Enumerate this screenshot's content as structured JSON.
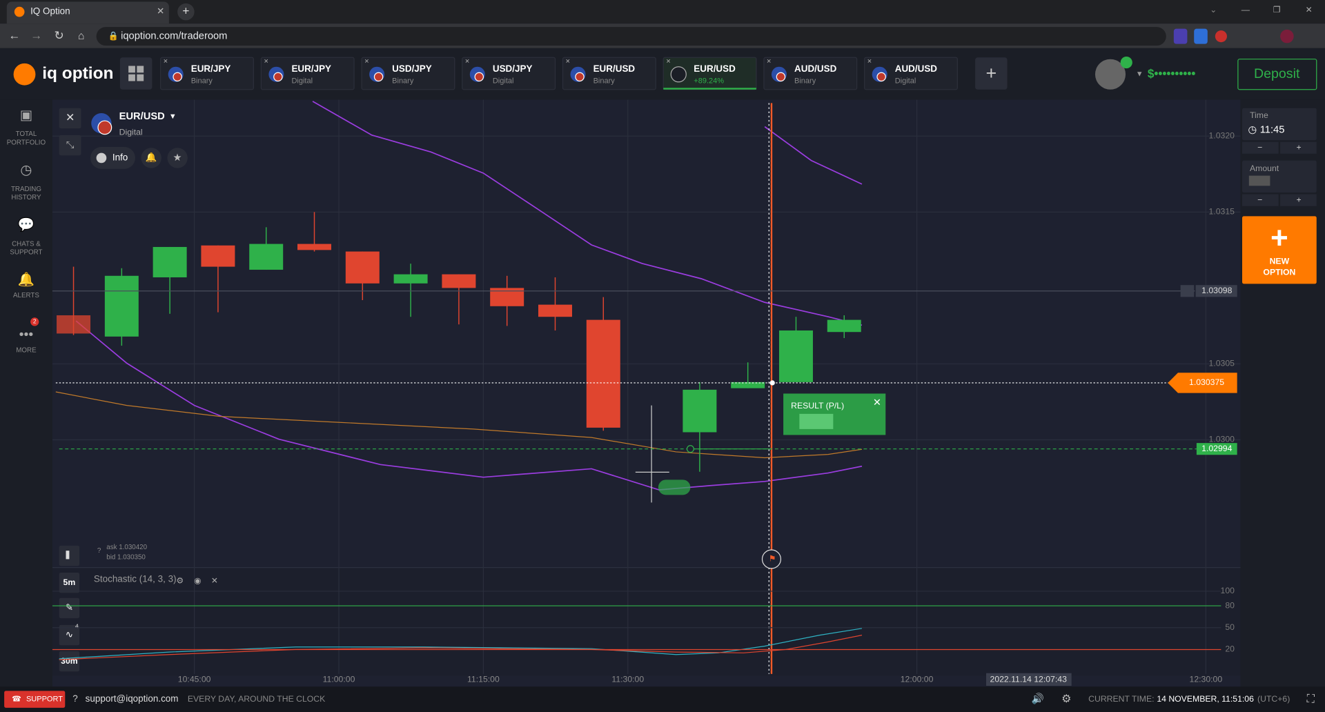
{
  "browser": {
    "tab_title": "IQ Option",
    "url": "iqoption.com/traderoom"
  },
  "header": {
    "logo": "iq option",
    "tabs": [
      {
        "pair": "EUR/JPY",
        "kind": "Binary"
      },
      {
        "pair": "EUR/JPY",
        "kind": "Digital"
      },
      {
        "pair": "USD/JPY",
        "kind": "Binary"
      },
      {
        "pair": "USD/JPY",
        "kind": "Digital"
      },
      {
        "pair": "EUR/USD",
        "kind": "Binary"
      },
      {
        "pair": "EUR/USD",
        "kind": "+89.24%"
      },
      {
        "pair": "AUD/USD",
        "kind": "Binary"
      },
      {
        "pair": "AUD/USD",
        "kind": "Digital"
      }
    ],
    "balance": "$••••••••••",
    "deposit": "Deposit"
  },
  "sidebar": {
    "items": [
      [
        "TOTAL",
        "PORTFOLIO"
      ],
      [
        "TRADING",
        "HISTORY"
      ],
      [
        "CHATS &",
        "SUPPORT"
      ],
      [
        "ALERTS"
      ],
      [
        "MORE"
      ]
    ],
    "more_badge": "2"
  },
  "asset": {
    "name": "EUR/USD",
    "type": "Digital",
    "info": "Info"
  },
  "quote": {
    "ask": "ask 1.030420",
    "bid": "bid 1.030350"
  },
  "chart": {
    "type": "candlestick",
    "ylim": [
      1.02932,
      1.03224
    ],
    "yticks": [
      {
        "value": 1.032,
        "label": "1.0320"
      },
      1.0315,
      {
        "value": 1.0305,
        "label": "1.0305"
      },
      {
        "value": 1.03,
        "label": "1.0300"
      }
    ],
    "candles": [
      {
        "open": 1.03082,
        "high": 1.03114,
        "low": 1.03069,
        "close": 1.0307
      },
      {
        "open": 1.03068,
        "high": 1.03113,
        "low": 1.03062,
        "close": 1.03108
      },
      {
        "open": 1.03107,
        "high": 1.03127,
        "low": 1.03083,
        "close": 1.03127
      },
      {
        "open": 1.03128,
        "high": 1.03128,
        "low": 1.03084,
        "close": 1.03114
      },
      {
        "open": 1.03112,
        "high": 1.0314,
        "low": 1.03112,
        "close": 1.03129
      },
      {
        "open": 1.03129,
        "high": 1.0315,
        "low": 1.03124,
        "close": 1.03125
      },
      {
        "open": 1.03124,
        "high": 1.03124,
        "low": 1.03092,
        "close": 1.03103
      },
      {
        "open": 1.03103,
        "high": 1.03116,
        "low": 1.03081,
        "close": 1.03109
      },
      {
        "open": 1.03109,
        "high": 1.03109,
        "low": 1.03076,
        "close": 1.031
      },
      {
        "open": 1.031,
        "high": 1.03108,
        "low": 1.03075,
        "close": 1.03088
      },
      {
        "open": 1.03089,
        "high": 1.03107,
        "low": 1.03072,
        "close": 1.03081
      },
      {
        "open": 1.03079,
        "high": 1.03094,
        "low": 1.03006,
        "close": 1.03008
      },
      {
        "open": 1.03005,
        "high": 1.03038,
        "low": 1.02979,
        "close": 1.03033
      },
      {
        "open": 1.03034,
        "high": 1.03051,
        "low": 1.03034,
        "close": 1.03038
      },
      {
        "open": 1.03038,
        "high": 1.03081,
        "low": 1.03038,
        "close": 1.03072
      },
      {
        "open": 1.03071,
        "high": 1.03082,
        "low": 1.03067,
        "close": 1.03079
      }
    ],
    "up_color": "#2fb14a",
    "down_color": "#e0452f",
    "alert_price": {
      "value": 1.03098,
      "label": "1.03098"
    },
    "current_price": {
      "value": 1.030375,
      "label": "1.030375"
    },
    "strike_price": {
      "value": 1.02994,
      "label": "1.02994"
    },
    "xticks": [
      "10:45:00",
      "11:00:00",
      "11:15:00",
      "11:30:00",
      "12:00:00",
      "12:30:00"
    ],
    "cursor_time": "2022.11.14 12:07:43",
    "result": "RESULT (P/L)"
  },
  "stochastic": {
    "title": "Stochastic (14, 3, 3)",
    "ylim": [
      0,
      100
    ],
    "yticks": [
      100,
      80,
      50,
      20
    ]
  },
  "tools": {
    "timeframe": "5m",
    "candle_size": "30m",
    "indicator_badge": "4"
  },
  "panel": {
    "time_label": "Time",
    "time": "11:45",
    "amount_label": "Amount",
    "new_option": [
      "NEW",
      "OPTION"
    ]
  },
  "footer": {
    "support": "SUPPORT",
    "email": "support@iqoption.com",
    "hours": "EVERY DAY, AROUND THE CLOCK",
    "current_time_label": "CURRENT TIME:",
    "current_time": "14 NOVEMBER, 11:51:06",
    "timezone": "(UTC+6)"
  }
}
